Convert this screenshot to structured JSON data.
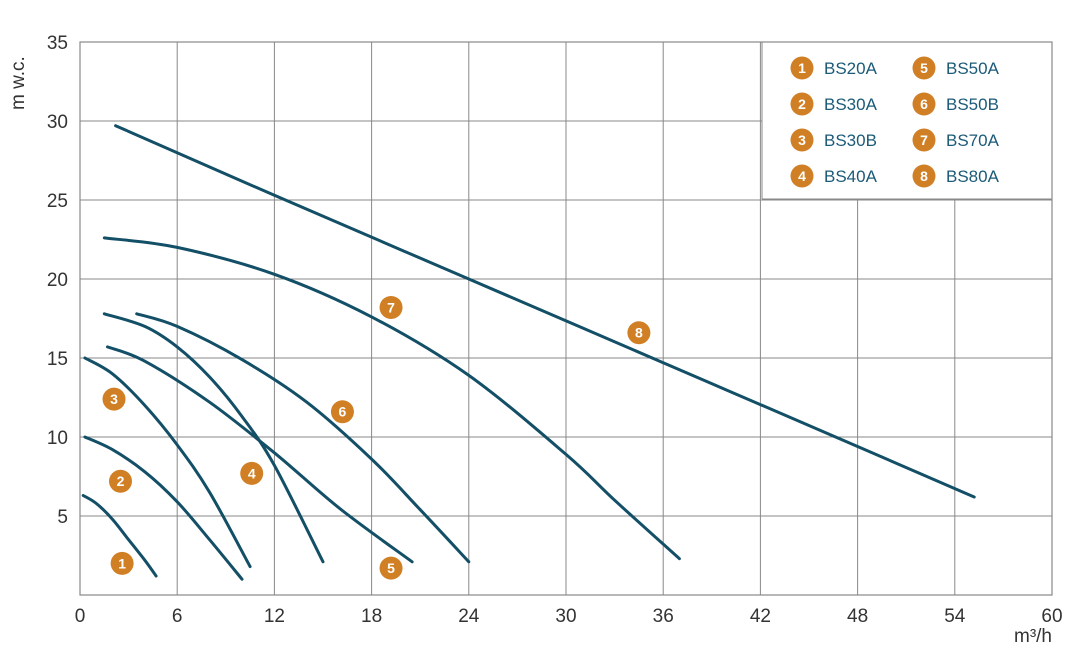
{
  "chart_data": {
    "type": "line",
    "xlabel": "m³/h",
    "ylabel": "m w.c.",
    "xlim": [
      0,
      60
    ],
    "ylim": [
      0,
      35
    ],
    "xticks": [
      0,
      6,
      12,
      18,
      24,
      30,
      36,
      42,
      48,
      54,
      60
    ],
    "yticks": [
      5,
      10,
      15,
      20,
      25,
      30,
      35
    ],
    "grid": true,
    "legend_position": "top-right",
    "colors": {
      "line": "#134f66",
      "badge": "#d07f25",
      "grid": "#888888",
      "legend_text": "#1b5a78"
    },
    "legend": [
      {
        "number": "1",
        "name": "BS20A"
      },
      {
        "number": "2",
        "name": "BS30A"
      },
      {
        "number": "3",
        "name": "BS30B"
      },
      {
        "number": "4",
        "name": "BS40A"
      },
      {
        "number": "5",
        "name": "BS50A"
      },
      {
        "number": "6",
        "name": "BS50B"
      },
      {
        "number": "7",
        "name": "BS70A"
      },
      {
        "number": "8",
        "name": "BS80A"
      }
    ],
    "series": [
      {
        "number": "1",
        "x": [
          0.2,
          1,
          2,
          3,
          4,
          4.7
        ],
        "y": [
          6.3,
          5.8,
          4.8,
          3.5,
          2.2,
          1.2
        ],
        "label_at": [
          2.6,
          2.0
        ]
      },
      {
        "number": "2",
        "x": [
          0.3,
          2,
          4,
          6,
          8,
          10
        ],
        "y": [
          10.0,
          9.2,
          7.8,
          5.9,
          3.5,
          1.0
        ],
        "label_at": [
          2.5,
          7.2
        ]
      },
      {
        "number": "3",
        "x": [
          0.3,
          2,
          4,
          6,
          8,
          10.5
        ],
        "y": [
          15.0,
          14.0,
          12.0,
          9.5,
          6.5,
          1.8
        ],
        "label_at": [
          2.1,
          12.4
        ]
      },
      {
        "number": "4",
        "x": [
          1.5,
          4,
          6,
          8,
          10,
          12,
          15
        ],
        "y": [
          17.8,
          17.0,
          15.7,
          13.8,
          11.3,
          8.2,
          2.1
        ],
        "label_at": [
          10.6,
          7.7
        ]
      },
      {
        "number": "5",
        "x": [
          1.7,
          4,
          8,
          12,
          16,
          20.5
        ],
        "y": [
          15.7,
          14.8,
          12.2,
          9.0,
          5.5,
          2.1
        ],
        "label_at": [
          19.2,
          1.7
        ]
      },
      {
        "number": "6",
        "x": [
          3.5,
          6,
          10,
          14,
          18,
          21,
          24
        ],
        "y": [
          17.8,
          17.0,
          14.9,
          12.2,
          8.6,
          5.4,
          2.1
        ],
        "label_at": [
          16.2,
          11.6
        ]
      },
      {
        "number": "7",
        "x": [
          1.5,
          6,
          12,
          18,
          24,
          30,
          33,
          37
        ],
        "y": [
          22.6,
          22.0,
          20.3,
          17.6,
          13.9,
          8.9,
          6.0,
          2.3
        ],
        "label_at": [
          19.2,
          18.2
        ]
      },
      {
        "number": "8",
        "x": [
          2.2,
          12,
          24,
          36,
          48,
          55.2
        ],
        "y": [
          29.7,
          25.3,
          20.0,
          14.7,
          9.4,
          6.2
        ],
        "label_at": [
          34.5,
          16.6
        ]
      }
    ]
  }
}
